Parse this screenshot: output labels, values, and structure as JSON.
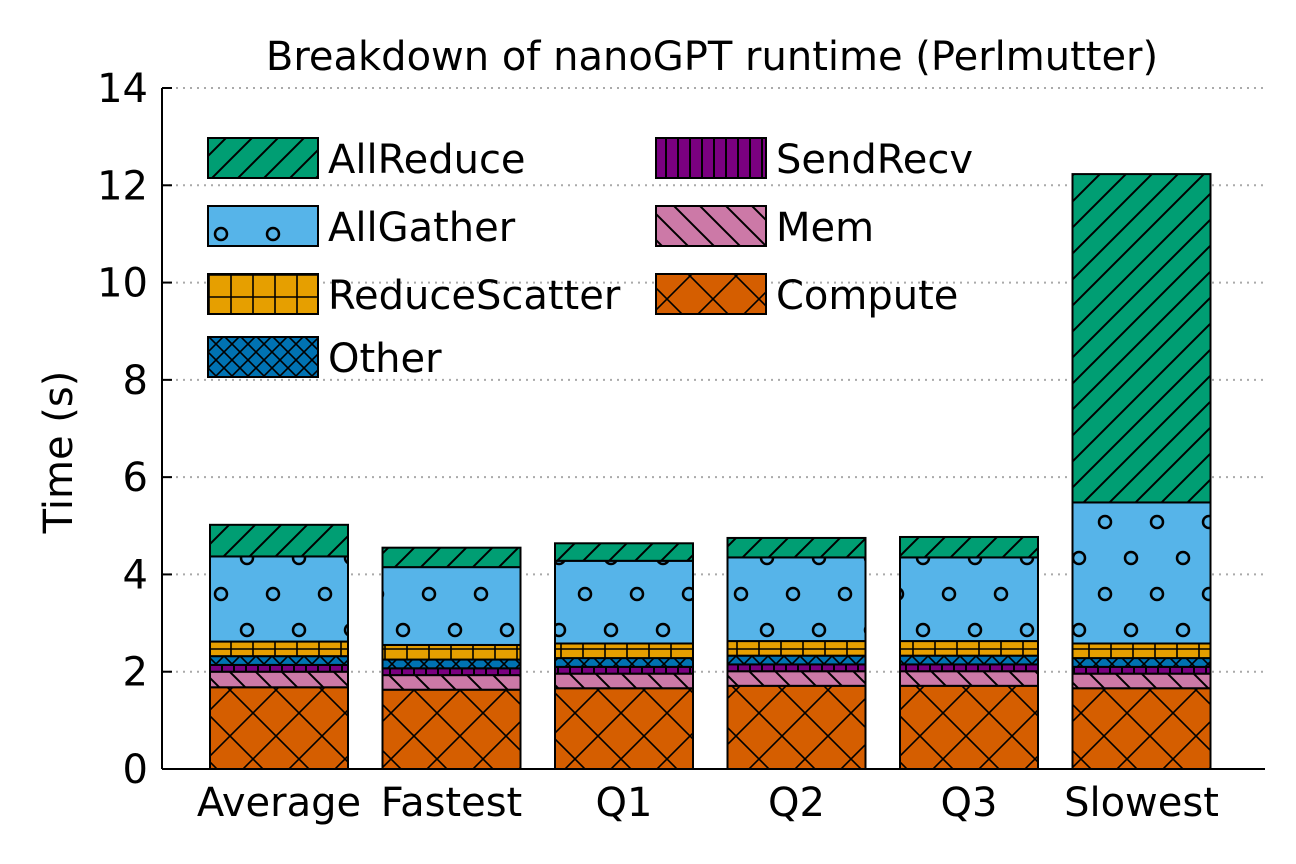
{
  "chart_data": {
    "type": "bar",
    "stacked": true,
    "title": "Breakdown of nanoGPT runtime (Perlmutter)",
    "xlabel": "",
    "ylabel": "Time (s)",
    "ylim": [
      0,
      14
    ],
    "yticks": [
      "0",
      "2",
      "4",
      "6",
      "8",
      "10",
      "12",
      "14"
    ],
    "grid": "horizontal-dotted",
    "legend_position": "top-left",
    "categories": [
      "Average",
      "Fastest",
      "Q1",
      "Q2",
      "Q3",
      "Slowest"
    ],
    "series": [
      {
        "name": "Compute",
        "color": "#D55E00",
        "pattern": "crosshatch-x",
        "values": [
          1.68,
          1.63,
          1.66,
          1.71,
          1.71,
          1.66
        ]
      },
      {
        "name": "Mem",
        "color": "#CC79A7",
        "pattern": "backslash",
        "values": [
          0.32,
          0.3,
          0.3,
          0.3,
          0.3,
          0.3
        ]
      },
      {
        "name": "SendRecv",
        "color": "#7A0080",
        "pattern": "vertical",
        "values": [
          0.14,
          0.14,
          0.14,
          0.14,
          0.14,
          0.14
        ]
      },
      {
        "name": "Other",
        "color": "#0072B2",
        "pattern": "diamond-cross",
        "values": [
          0.18,
          0.18,
          0.18,
          0.18,
          0.18,
          0.18
        ]
      },
      {
        "name": "ReduceScatter",
        "color": "#E69F00",
        "pattern": "plus-grid",
        "values": [
          0.3,
          0.3,
          0.3,
          0.3,
          0.3,
          0.3
        ]
      },
      {
        "name": "AllGather",
        "color": "#56B4E9",
        "pattern": "circles",
        "values": [
          1.75,
          1.6,
          1.7,
          1.72,
          1.72,
          2.9
        ]
      },
      {
        "name": "AllReduce",
        "color": "#009E73",
        "pattern": "slash",
        "values": [
          0.65,
          0.4,
          0.36,
          0.4,
          0.42,
          6.75
        ]
      }
    ]
  },
  "legend_order": [
    "AllReduce",
    "SendRecv",
    "AllGather",
    "Mem",
    "ReduceScatter",
    "Compute",
    "Other"
  ]
}
